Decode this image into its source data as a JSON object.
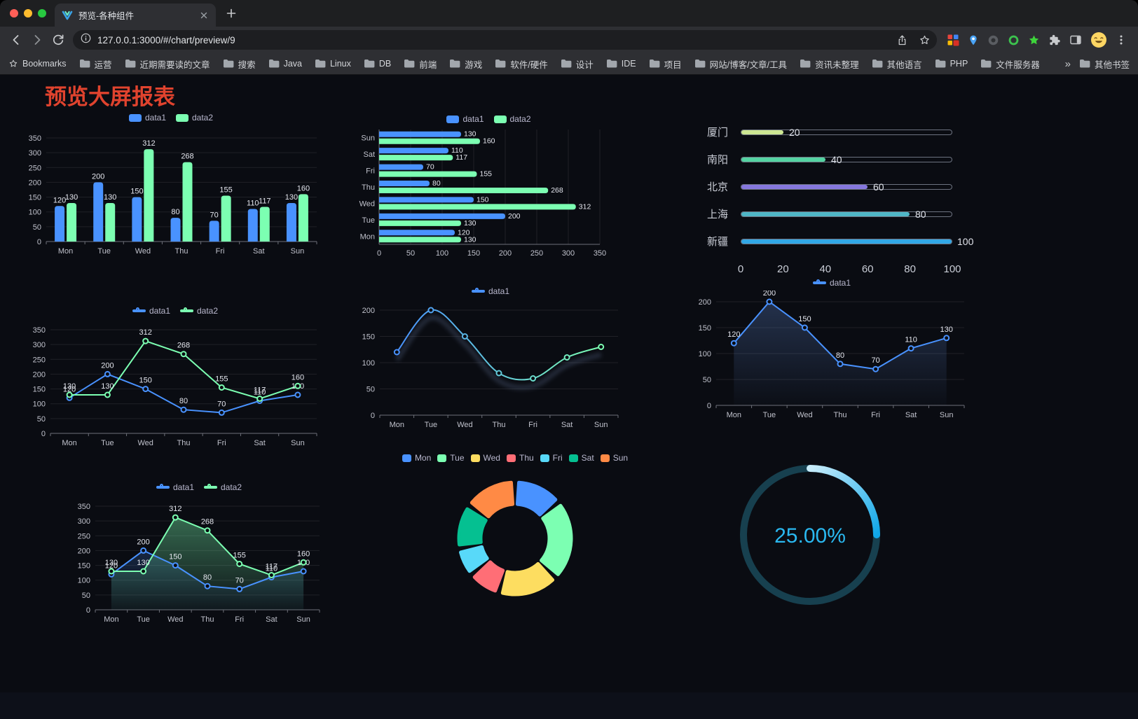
{
  "browser": {
    "tab": {
      "title": "预览-各种组件"
    },
    "url": "127.0.0.1:3000/#/chart/preview/9",
    "bookmarks_label": "Bookmarks",
    "bookmarks": [
      "运营",
      "近期需要读的文章",
      "搜索",
      "Java",
      "Linux",
      "DB",
      "前端",
      "游戏",
      "软件/硬件",
      "设计",
      "IDE",
      "项目",
      "网站/博客/文章/工具",
      "资讯未整理",
      "其他语言",
      "PHP",
      "文件服务器"
    ],
    "overflow_chevron": "»",
    "other_bookmarks": "其他书签"
  },
  "page": {
    "title": "预览大屏报表",
    "title_color": "#e0432e",
    "background": "#0a0c12"
  },
  "chart_data": [
    {
      "id": "grouped-bar",
      "type": "bar",
      "categories": [
        "Mon",
        "Tue",
        "Wed",
        "Thu",
        "Fri",
        "Sat",
        "Sun"
      ],
      "series": [
        {
          "name": "data1",
          "color": "#4992ff",
          "values": [
            120,
            200,
            150,
            80,
            70,
            110,
            130
          ]
        },
        {
          "name": "data2",
          "color": "#7cffb2",
          "values": [
            130,
            130,
            312,
            268,
            155,
            117,
            160
          ]
        }
      ],
      "ylim": [
        0,
        350
      ],
      "ystep": 50,
      "value_labels": true,
      "legend_position": "top"
    },
    {
      "id": "horizontal-bar",
      "type": "bar",
      "orientation": "horizontal",
      "categories": [
        "Mon",
        "Tue",
        "Wed",
        "Thu",
        "Fri",
        "Sat",
        "Sun"
      ],
      "series": [
        {
          "name": "data1",
          "color": "#4992ff",
          "values": [
            120,
            200,
            150,
            80,
            70,
            110,
            130
          ]
        },
        {
          "name": "data2",
          "color": "#7cffb2",
          "values": [
            130,
            130,
            312,
            268,
            155,
            117,
            160
          ]
        }
      ],
      "xlim": [
        0,
        350
      ],
      "xstep": 50,
      "value_labels": true,
      "legend_position": "top"
    },
    {
      "id": "progress-bars",
      "type": "bar",
      "subtype": "progress",
      "items": [
        {
          "label": "厦门",
          "value": 20,
          "color": "#cde793"
        },
        {
          "label": "南阳",
          "value": 40,
          "color": "#54d3a2"
        },
        {
          "label": "北京",
          "value": 60,
          "color": "#8577dd"
        },
        {
          "label": "上海",
          "value": 80,
          "color": "#4fb6c6"
        },
        {
          "label": "新疆",
          "value": 100,
          "color": "#32a8e6"
        }
      ],
      "max": 100,
      "ticks": [
        0,
        20,
        40,
        60,
        80,
        100
      ]
    },
    {
      "id": "multi-line",
      "type": "line",
      "categories": [
        "Mon",
        "Tue",
        "Wed",
        "Thu",
        "Fri",
        "Sat",
        "Sun"
      ],
      "series": [
        {
          "name": "data1",
          "color": "#4992ff",
          "values": [
            120,
            200,
            150,
            80,
            70,
            110,
            130
          ]
        },
        {
          "name": "data2",
          "color": "#7cffb2",
          "values": [
            130,
            130,
            312,
            268,
            155,
            117,
            160
          ]
        }
      ],
      "ylim": [
        0,
        350
      ],
      "ystep": 50,
      "value_labels": true,
      "legend_position": "top"
    },
    {
      "id": "smooth-gradient-line",
      "type": "line",
      "smooth": true,
      "shadow": true,
      "categories": [
        "Mon",
        "Tue",
        "Wed",
        "Thu",
        "Fri",
        "Sat",
        "Sun"
      ],
      "series": [
        {
          "name": "data1",
          "gradient": [
            "#4992ff",
            "#7cffb2"
          ],
          "values": [
            120,
            200,
            150,
            80,
            70,
            110,
            130
          ]
        }
      ],
      "ylim": [
        0,
        200
      ],
      "ystep": 50,
      "value_labels": false,
      "legend_position": "top"
    },
    {
      "id": "area-line",
      "type": "line",
      "categories": [
        "Mon",
        "Tue",
        "Wed",
        "Thu",
        "Fri",
        "Sat",
        "Sun"
      ],
      "series": [
        {
          "name": "data1",
          "color": "#4992ff",
          "area": [
            "rgba(96,136,210,0.30)",
            "rgba(96,136,210,0.02)"
          ],
          "values": [
            120,
            200,
            150,
            80,
            70,
            110,
            130
          ]
        }
      ],
      "ylim": [
        0,
        200
      ],
      "ystep": 50,
      "value_labels": true,
      "legend_position": "top"
    },
    {
      "id": "multi-area-line",
      "type": "line",
      "categories": [
        "Mon",
        "Tue",
        "Wed",
        "Thu",
        "Fri",
        "Sat",
        "Sun"
      ],
      "series": [
        {
          "name": "data1",
          "color": "#4992ff",
          "area": [
            "rgba(73,146,255,0.20)",
            "rgba(73,146,255,0.02)"
          ],
          "values": [
            120,
            200,
            150,
            80,
            70,
            110,
            130
          ]
        },
        {
          "name": "data2",
          "color": "#7cffb2",
          "area": [
            "rgba(124,255,178,0.38)",
            "rgba(124,255,178,0.04)"
          ],
          "values": [
            130,
            130,
            312,
            268,
            155,
            117,
            160
          ]
        }
      ],
      "ylim": [
        0,
        350
      ],
      "ystep": 50,
      "value_labels": true,
      "legend_position": "top"
    },
    {
      "id": "donut",
      "type": "pie",
      "categories": [
        "Mon",
        "Tue",
        "Wed",
        "Thu",
        "Fri",
        "Sat",
        "Sun"
      ],
      "values": [
        120,
        200,
        150,
        80,
        70,
        110,
        130
      ],
      "colors": [
        "#4992ff",
        "#7cffb2",
        "#fddd60",
        "#ff6e76",
        "#58d9f9",
        "#05c091",
        "#ff8a45"
      ],
      "legend_position": "top"
    },
    {
      "id": "gauge",
      "type": "gauge",
      "value": 25,
      "max": 100,
      "label": "25.00%",
      "label_color": "#2ab8f0",
      "progress_gradient": [
        "#c9edfb",
        "#0fa7e9"
      ],
      "track_color": "#17404f"
    }
  ]
}
